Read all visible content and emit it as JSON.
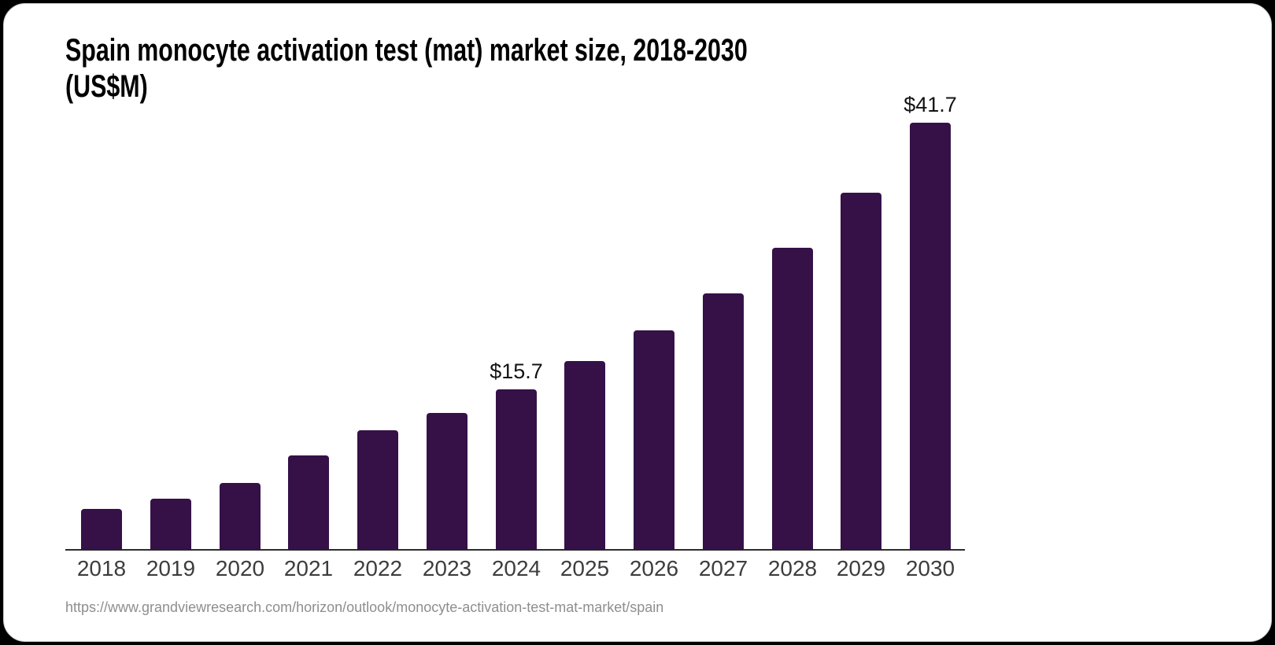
{
  "chart_data": {
    "type": "bar",
    "title": "Spain monocyte activation test (mat) market size, 2018-2030 (US$M)",
    "title_lines": [
      "Spain monocyte activation test (mat) market size, 2018-2030",
      "(US$M)"
    ],
    "unit": "US$M",
    "categories": [
      "2018",
      "2019",
      "2020",
      "2021",
      "2022",
      "2023",
      "2024",
      "2025",
      "2026",
      "2027",
      "2028",
      "2029",
      "2030"
    ],
    "values": [
      4.0,
      5.0,
      6.5,
      9.2,
      11.7,
      13.4,
      15.7,
      18.4,
      21.4,
      25.0,
      29.5,
      34.9,
      41.7
    ],
    "data_labels": [
      {
        "category": "2024",
        "text": "$15.7"
      },
      {
        "category": "2030",
        "text": "$41.7"
      }
    ],
    "xlabel": "",
    "ylabel": "",
    "ylim": [
      0,
      41.7
    ],
    "grid": false,
    "legend": false,
    "bar_color": "#351148",
    "axis_color": "#2c2c2c",
    "tick_label_color": "#3d3d3d",
    "data_label_color": "#141414"
  },
  "footer": {
    "source_url": "https://www.grandviewresearch.com/horizon/outlook/monocyte-activation-test-mat-market/spain"
  }
}
